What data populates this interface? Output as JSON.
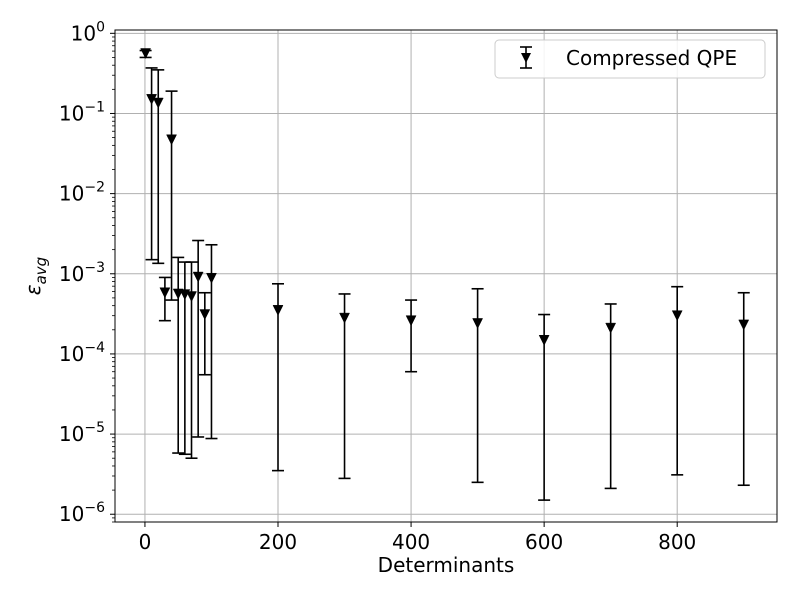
{
  "chart_data": {
    "type": "scatter",
    "xlabel": "Determinants",
    "ylabel_base": "ε",
    "ylabel_sub": "avg",
    "xlim": [
      -45,
      950
    ],
    "ylim": [
      8e-07,
      1.1
    ],
    "yscale": "log",
    "grid": true,
    "legend_position": "top-right",
    "x_ticks": [
      0,
      200,
      400,
      600,
      800
    ],
    "y_ticks": [
      {
        "value": 1e-06,
        "base": "10",
        "exp": "−6"
      },
      {
        "value": 1e-05,
        "base": "10",
        "exp": "−5"
      },
      {
        "value": 0.0001,
        "base": "10",
        "exp": "−4"
      },
      {
        "value": 0.001,
        "base": "10",
        "exp": "−3"
      },
      {
        "value": 0.01,
        "base": "10",
        "exp": "−2"
      },
      {
        "value": 0.1,
        "base": "10",
        "exp": "−1"
      },
      {
        "value": 1,
        "base": "10",
        "exp": "0"
      }
    ],
    "series": [
      {
        "name": "Compressed QPE",
        "color": "#000000",
        "marker": "triangle-down",
        "points": [
          {
            "x": 1,
            "y": 0.56,
            "lo": 0.5,
            "hi": 0.61
          },
          {
            "x": 10,
            "y": 0.15,
            "lo": 0.0015,
            "hi": 0.37
          },
          {
            "x": 20,
            "y": 0.135,
            "lo": 0.00135,
            "hi": 0.35
          },
          {
            "x": 30,
            "y": 0.00058,
            "lo": 0.00026,
            "hi": 0.0009
          },
          {
            "x": 40,
            "y": 0.047,
            "lo": 0.00047,
            "hi": 0.19
          },
          {
            "x": 50,
            "y": 0.00056,
            "lo": 5.8e-06,
            "hi": 0.0016
          },
          {
            "x": 60,
            "y": 0.00055,
            "lo": 5.6e-06,
            "hi": 0.0014
          },
          {
            "x": 70,
            "y": 0.00052,
            "lo": 5e-06,
            "hi": 0.0014
          },
          {
            "x": 80,
            "y": 0.00091,
            "lo": 9.2e-06,
            "hi": 0.0026
          },
          {
            "x": 90,
            "y": 0.00031,
            "lo": 5.5e-05,
            "hi": 0.00058
          },
          {
            "x": 100,
            "y": 0.00088,
            "lo": 8.8e-06,
            "hi": 0.0023
          },
          {
            "x": 200,
            "y": 0.00035,
            "lo": 3.5e-06,
            "hi": 0.00075
          },
          {
            "x": 300,
            "y": 0.00028,
            "lo": 2.8e-06,
            "hi": 0.00056
          },
          {
            "x": 400,
            "y": 0.00026,
            "lo": 6e-05,
            "hi": 0.00047
          },
          {
            "x": 500,
            "y": 0.00024,
            "lo": 2.5e-06,
            "hi": 0.00065
          },
          {
            "x": 600,
            "y": 0.000148,
            "lo": 1.5e-06,
            "hi": 0.00031
          },
          {
            "x": 700,
            "y": 0.00021,
            "lo": 2.1e-06,
            "hi": 0.00042
          },
          {
            "x": 800,
            "y": 0.0003,
            "lo": 3.1e-06,
            "hi": 0.00069
          },
          {
            "x": 900,
            "y": 0.00023,
            "lo": 2.3e-06,
            "hi": 0.00058
          }
        ]
      }
    ]
  }
}
